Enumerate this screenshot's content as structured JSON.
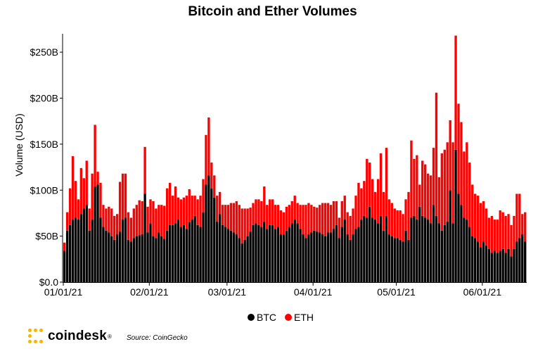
{
  "title": "Bitcoin and Ether Volumes",
  "source": "Source: CoinGecko",
  "brand": {
    "name": "coindesk",
    "reg": "®",
    "logo_icon": "coindesk-dot-logo-icon",
    "logo_color": "#f7b500"
  },
  "legend": [
    {
      "name": "BTC",
      "color": "#000000"
    },
    {
      "name": "ETH",
      "color": "#ff0000"
    }
  ],
  "chart_data": {
    "type": "bar",
    "stacked": true,
    "title": "Bitcoin and Ether Volumes",
    "xlabel": "",
    "ylabel": "Volume (USD)",
    "y_unit": "USD billions",
    "ylim": [
      0,
      270
    ],
    "yticks": [
      0,
      50,
      100,
      150,
      200,
      250
    ],
    "ytick_labels": [
      "$0.0",
      "$50B",
      "$100B",
      "$150B",
      "$200B",
      "$250B"
    ],
    "xticks": [
      "01/01/21",
      "02/01/21",
      "03/01/21",
      "04/01/21",
      "05/01/21",
      "06/01/21"
    ],
    "x_start": "2021-01-01",
    "grid": false,
    "legend_position": "bottom",
    "series": [
      {
        "name": "BTC",
        "color": "#000000",
        "values": [
          34,
          56,
          62,
          68,
          70,
          68,
          74,
          80,
          84,
          56,
          68,
          104,
          106,
          70,
          60,
          56,
          54,
          50,
          46,
          52,
          55,
          68,
          70,
          46,
          44,
          48,
          50,
          51,
          52,
          96,
          54,
          64,
          50,
          48,
          54,
          50,
          47,
          56,
          62,
          62,
          64,
          68,
          60,
          62,
          58,
          65,
          68,
          72,
          62,
          60,
          76,
          106,
          116,
          102,
          92,
          66,
          74,
          62,
          60,
          58,
          56,
          54,
          52,
          48,
          42,
          46,
          50,
          55,
          62,
          64,
          62,
          60,
          66,
          58,
          62,
          62,
          58,
          60,
          52,
          52,
          56,
          60,
          64,
          68,
          64,
          58,
          52,
          48,
          52,
          54,
          56,
          55,
          54,
          52,
          50,
          54,
          54,
          58,
          62,
          48,
          60,
          68,
          52,
          46,
          52,
          58,
          60,
          68,
          72,
          70,
          82,
          70,
          68,
          64,
          72,
          56,
          72,
          52,
          50,
          48,
          48,
          46,
          44,
          56,
          46,
          70,
          72,
          68,
          82,
          72,
          70,
          68,
          64,
          84,
          72,
          64,
          56,
          62,
          66,
          100,
          64,
          144,
          96,
          84,
          70,
          68,
          60,
          50,
          48,
          44,
          38,
          44,
          40,
          36,
          32,
          34,
          32,
          34,
          36,
          32,
          36,
          28,
          36,
          44,
          48,
          52,
          44
        ]
      },
      {
        "name": "ETH",
        "color": "#ff0000",
        "values": [
          9,
          20,
          40,
          69,
          40,
          22,
          50,
          33,
          48,
          24,
          50,
          67,
          14,
          38,
          24,
          24,
          28,
          30,
          26,
          22,
          54,
          50,
          48,
          30,
          26,
          32,
          34,
          38,
          36,
          51,
          28,
          26,
          38,
          32,
          30,
          34,
          36,
          46,
          46,
          32,
          40,
          24,
          30,
          30,
          36,
          36,
          26,
          22,
          28,
          34,
          36,
          54,
          63,
          28,
          24,
          28,
          24,
          22,
          24,
          26,
          30,
          32,
          36,
          36,
          38,
          34,
          30,
          26,
          24,
          26,
          28,
          28,
          38,
          26,
          28,
          28,
          26,
          24,
          26,
          24,
          26,
          24,
          24,
          26,
          22,
          26,
          32,
          36,
          34,
          30,
          26,
          26,
          30,
          34,
          36,
          32,
          30,
          30,
          26,
          22,
          28,
          26,
          24,
          26,
          28,
          36,
          48,
          34,
          38,
          64,
          48,
          42,
          30,
          48,
          68,
          42,
          74,
          38,
          36,
          32,
          30,
          32,
          30,
          34,
          52,
          84,
          62,
          70,
          24,
          60,
          58,
          50,
          52,
          62,
          134,
          50,
          84,
          82,
          86,
          76,
          88,
          124,
          98,
          90,
          72,
          84,
          70,
          56,
          48,
          50,
          48,
          44,
          40,
          34,
          40,
          34,
          36,
          44,
          40,
          40,
          38,
          34,
          36,
          52,
          48,
          22,
          32
        ]
      }
    ]
  }
}
